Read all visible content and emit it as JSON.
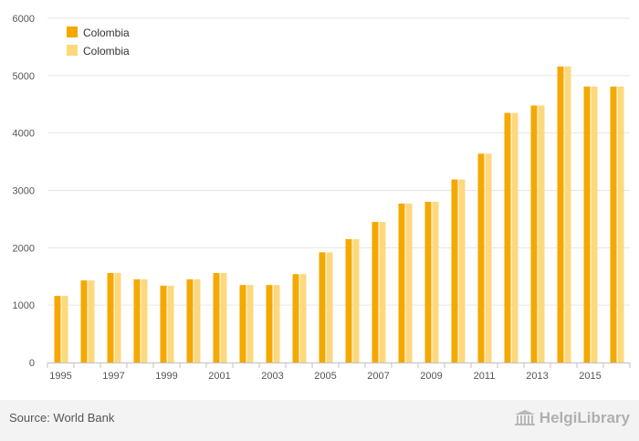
{
  "chart_data": {
    "type": "bar",
    "categories": [
      "1995",
      "1996",
      "1997",
      "1998",
      "1999",
      "2000",
      "2001",
      "2002",
      "2003",
      "2004",
      "2005",
      "2006",
      "2007",
      "2008",
      "2009",
      "2010",
      "2011",
      "2012",
      "2013",
      "2014",
      "2015",
      "2016"
    ],
    "x_tick_labels": [
      "1995",
      "1997",
      "1999",
      "2001",
      "2003",
      "2005",
      "2007",
      "2009",
      "2011",
      "2013",
      "2015"
    ],
    "series": [
      {
        "name": "Colombia",
        "color": "#f5a800",
        "values": [
          1160,
          1430,
          1560,
          1450,
          1340,
          1450,
          1560,
          1350,
          1350,
          1540,
          1920,
          2150,
          2450,
          2770,
          2800,
          3190,
          3640,
          4350,
          4480,
          5160,
          4810,
          4810
        ]
      },
      {
        "name": "Colombia",
        "color": "#fdd87c",
        "values": [
          1160,
          1430,
          1560,
          1450,
          1340,
          1450,
          1560,
          1350,
          1350,
          1540,
          1920,
          2150,
          2450,
          2770,
          2800,
          3190,
          3640,
          4350,
          4480,
          5160,
          4810,
          4810
        ]
      }
    ],
    "y_ticks": [
      0,
      1000,
      2000,
      3000,
      4000,
      5000,
      6000
    ],
    "ylim": [
      0,
      6000
    ],
    "grid": true,
    "legend_position": "top-left"
  },
  "footer": {
    "source": "Source: World Bank",
    "brand": "HelgiLibrary"
  },
  "icons": {
    "brand": "library-building-icon"
  }
}
